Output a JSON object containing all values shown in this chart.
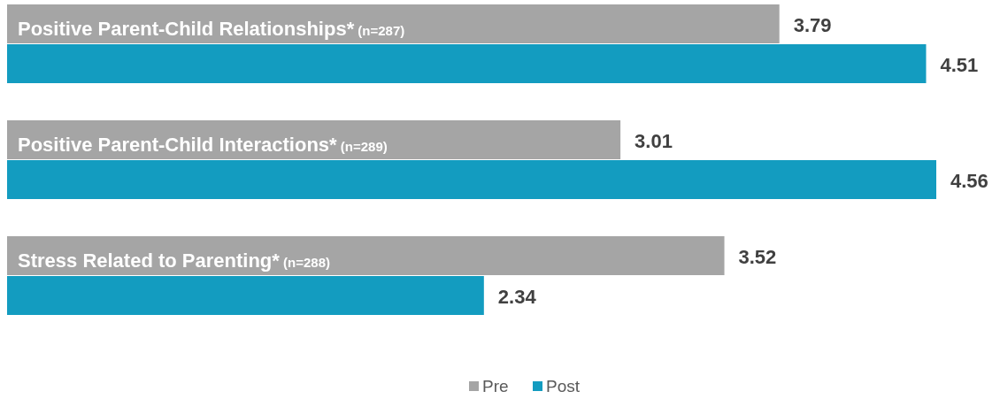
{
  "chart_data": {
    "type": "bar",
    "orientation": "horizontal",
    "categories": [
      "Positive Parent-Child Relationships* (n=287)",
      "Positive Parent-Child Interactions* (n=289)",
      "Stress Related to Parenting* (n=288)"
    ],
    "series": [
      {
        "name": "Pre",
        "color": "#a5a5a5",
        "values": [
          3.79,
          3.01,
          3.52
        ]
      },
      {
        "name": "Post",
        "color": "#139cc0",
        "values": [
          4.51,
          4.56,
          2.34
        ]
      }
    ],
    "data_labels": true,
    "legend": "bottom"
  }
}
